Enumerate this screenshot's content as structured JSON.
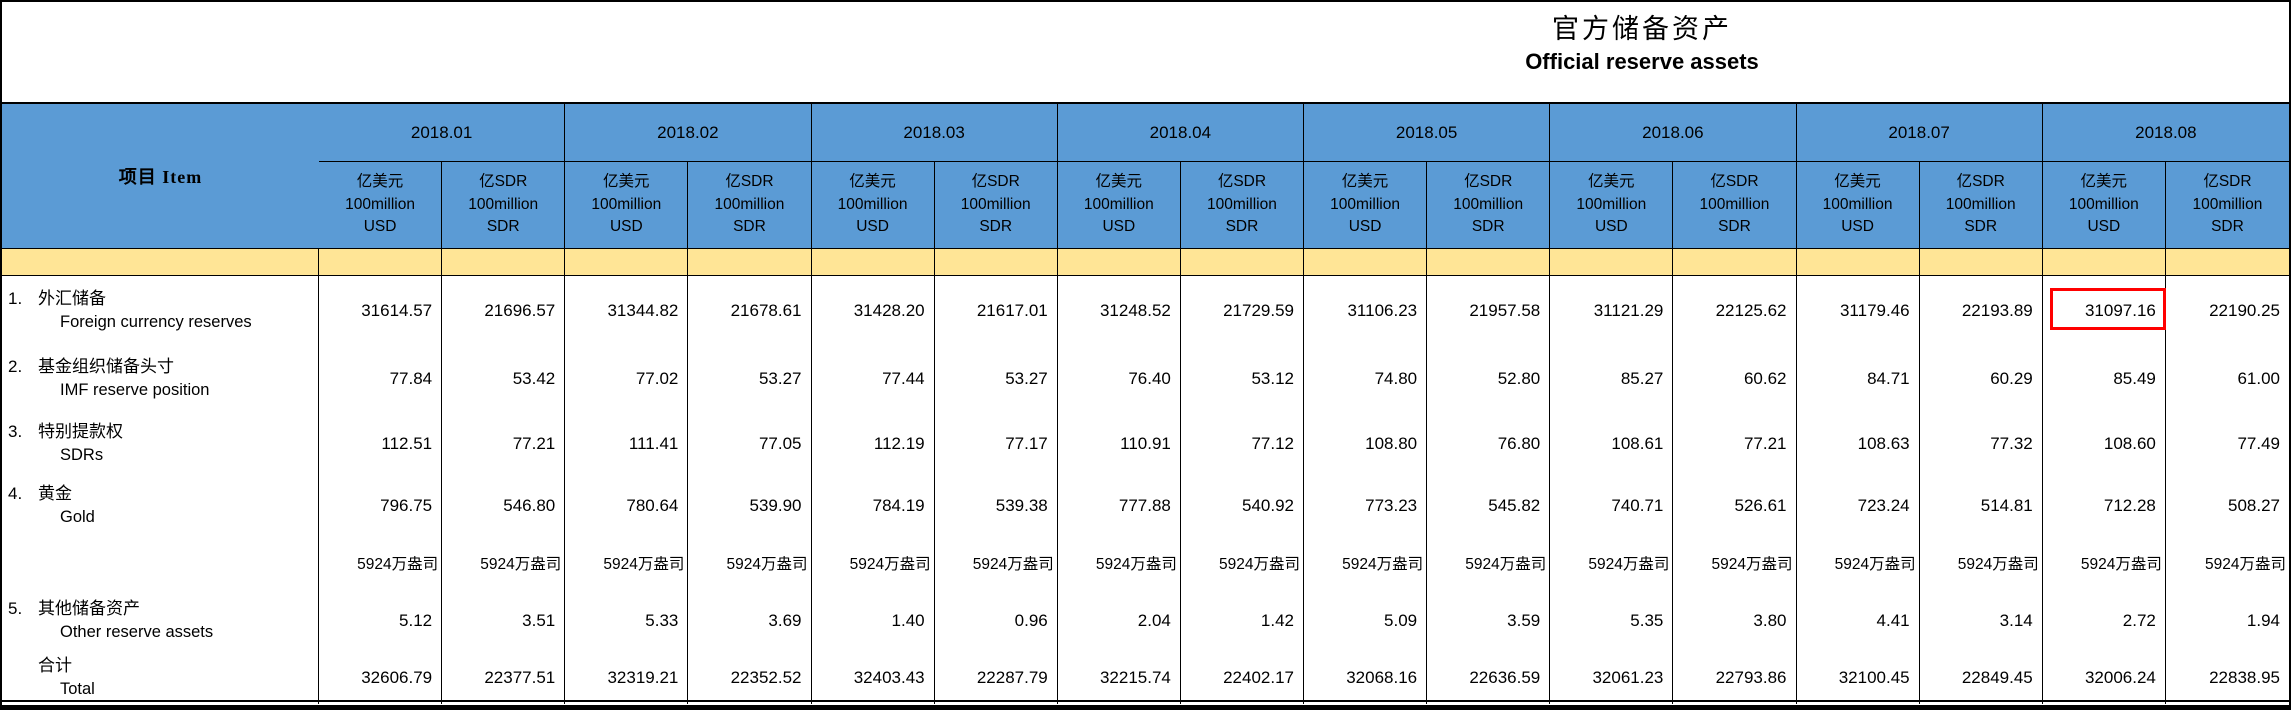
{
  "title": {
    "zh": "官方储备资产",
    "en": "Official reserve assets"
  },
  "table": {
    "item_header": "项目  Item",
    "months": [
      "2018.01",
      "2018.02",
      "2018.03",
      "2018.04",
      "2018.05",
      "2018.06",
      "2018.07",
      "2018.08"
    ],
    "unit_usd": {
      "line1": "亿美元",
      "line2": "100million",
      "line3": "USD"
    },
    "unit_sdr": {
      "line1": "亿SDR",
      "line2": "100million",
      "line3": "SDR"
    },
    "rows": [
      {
        "num": "1.",
        "zh": "外汇储备",
        "en": "Foreign currency reserves",
        "ounce_row": false,
        "values": [
          "31614.57",
          "21696.57",
          "31344.82",
          "21678.61",
          "31428.20",
          "21617.01",
          "31248.52",
          "21729.59",
          "31106.23",
          "21957.58",
          "31121.29",
          "22125.62",
          "31179.46",
          "22193.89",
          "31097.16",
          "22190.25"
        ]
      },
      {
        "num": "2.",
        "zh": "基金组织储备头寸",
        "en": "IMF reserve position",
        "ounce_row": false,
        "values": [
          "77.84",
          "53.42",
          "77.02",
          "53.27",
          "77.44",
          "53.27",
          "76.40",
          "53.12",
          "74.80",
          "52.80",
          "85.27",
          "60.62",
          "84.71",
          "60.29",
          "85.49",
          "61.00"
        ]
      },
      {
        "num": "3.",
        "zh": "特别提款权",
        "en": "SDRs",
        "ounce_row": false,
        "values": [
          "112.51",
          "77.21",
          "111.41",
          "77.05",
          "112.19",
          "77.17",
          "110.91",
          "77.12",
          "108.80",
          "76.80",
          "108.61",
          "77.21",
          "108.63",
          "77.32",
          "108.60",
          "77.49"
        ]
      },
      {
        "num": "4.",
        "zh": "黄金",
        "en": "Gold",
        "ounce_row": false,
        "values": [
          "796.75",
          "546.80",
          "780.64",
          "539.90",
          "784.19",
          "539.38",
          "777.88",
          "540.92",
          "773.23",
          "545.82",
          "740.71",
          "526.61",
          "723.24",
          "514.81",
          "712.28",
          "508.27"
        ]
      },
      {
        "num": "",
        "zh": "",
        "en": "",
        "ounce_row": true,
        "values": [
          "5924万盎司",
          "5924万盎司",
          "5924万盎司",
          "5924万盎司",
          "5924万盎司",
          "5924万盎司",
          "5924万盎司",
          "5924万盎司",
          "5924万盎司",
          "5924万盎司",
          "5924万盎司",
          "5924万盎司",
          "5924万盎司",
          "5924万盎司",
          "5924万盎司",
          "5924万盎司"
        ]
      },
      {
        "num": "5.",
        "zh": "其他储备资产",
        "en": "Other reserve assets",
        "ounce_row": false,
        "values": [
          "5.12",
          "3.51",
          "5.33",
          "3.69",
          "1.40",
          "0.96",
          "2.04",
          "1.42",
          "5.09",
          "3.59",
          "5.35",
          "3.80",
          "4.41",
          "3.14",
          "2.72",
          "1.94"
        ]
      },
      {
        "num": "",
        "zh": "合计",
        "en": "Total",
        "ounce_row": false,
        "values": [
          "32606.79",
          "22377.51",
          "32319.21",
          "22352.52",
          "32403.43",
          "22287.79",
          "32215.74",
          "22402.17",
          "32068.16",
          "22636.59",
          "32061.23",
          "22793.86",
          "32100.45",
          "22849.45",
          "32006.24",
          "22838.95"
        ]
      }
    ],
    "highlight": {
      "row_index": 0,
      "value_index": 14
    }
  },
  "colors": {
    "header_blue": "#5B9BD5",
    "stripe_yellow": "#FFE596",
    "highlight_red": "#FF0000",
    "border_black": "#000000"
  }
}
